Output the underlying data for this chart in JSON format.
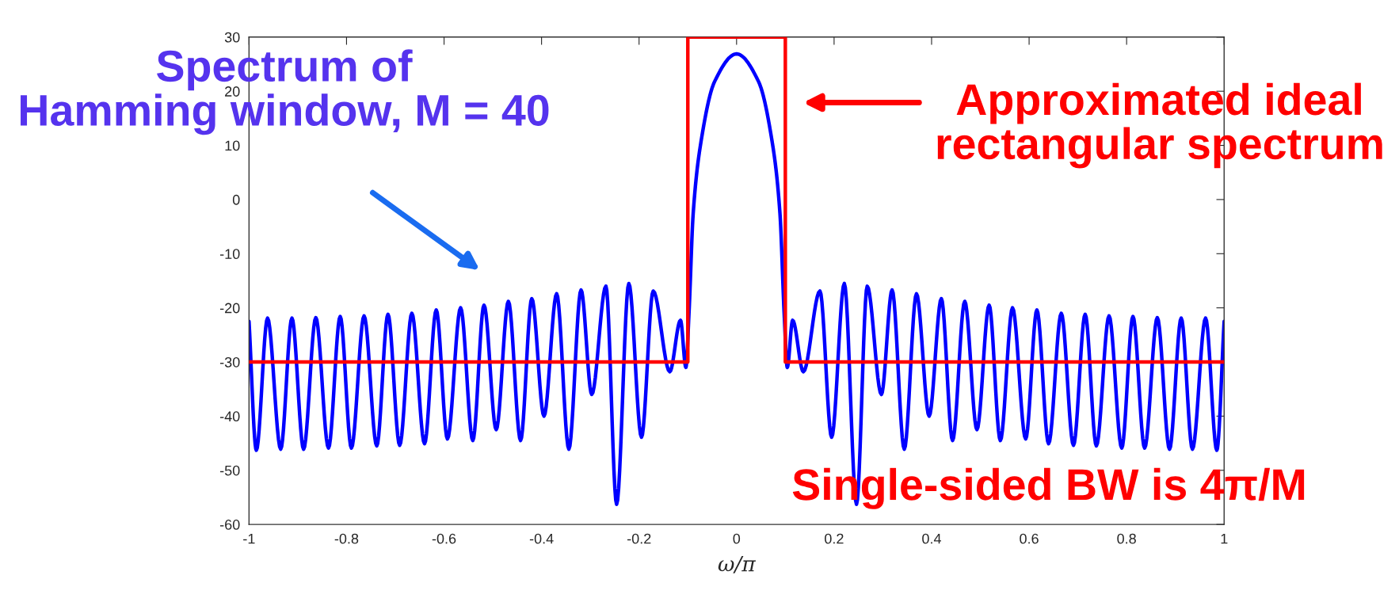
{
  "chart_data": {
    "type": "line",
    "xlabel": "ω/π",
    "xlim": [
      -1,
      1
    ],
    "ylim": [
      -60,
      30
    ],
    "xticks": [
      -1,
      -0.8,
      -0.6,
      -0.4,
      -0.2,
      0,
      0.2,
      0.4,
      0.6,
      0.8,
      1
    ],
    "yticks": [
      -60,
      -50,
      -40,
      -30,
      -20,
      -10,
      0,
      10,
      20,
      30
    ],
    "grid": false,
    "legend": false,
    "marker": "none",
    "line_style": "solid",
    "series": [
      {
        "color": "#0000ff",
        "x": [
          -1.0,
          -0.985,
          -0.962,
          -0.935,
          -0.912,
          -0.888,
          -0.863,
          -0.837,
          -0.813,
          -0.79,
          -0.764,
          -0.738,
          -0.715,
          -0.691,
          -0.666,
          -0.64,
          -0.616,
          -0.593,
          -0.566,
          -0.541,
          -0.518,
          -0.493,
          -0.468,
          -0.443,
          -0.42,
          -0.395,
          -0.369,
          -0.344,
          -0.319,
          -0.297,
          -0.268,
          -0.246,
          -0.221,
          -0.195,
          -0.171,
          -0.137,
          -0.115,
          -0.104,
          -0.0976,
          -0.089,
          -0.075,
          -0.045,
          0.0,
          0.045,
          0.075,
          0.089,
          0.0976,
          0.104,
          0.115,
          0.137,
          0.171,
          0.195,
          0.221,
          0.246,
          0.268,
          0.297,
          0.319,
          0.344,
          0.369,
          0.395,
          0.42,
          0.443,
          0.468,
          0.493,
          0.518,
          0.541,
          0.566,
          0.593,
          0.616,
          0.64,
          0.666,
          0.691,
          0.715,
          0.738,
          0.764,
          0.79,
          0.813,
          0.837,
          0.863,
          0.888,
          0.912,
          0.935,
          0.962,
          0.985,
          1.0
        ],
        "values": [
          -22.5,
          -46.3,
          -21.9,
          -46.1,
          -21.9,
          -46.1,
          -21.8,
          -45.9,
          -21.6,
          -45.9,
          -21.5,
          -45.5,
          -21.2,
          -45.4,
          -21.0,
          -45.1,
          -20.4,
          -44.2,
          -20.0,
          -44.5,
          -19.5,
          -42.5,
          -18.8,
          -44.5,
          -18.3,
          -40.0,
          -17.4,
          -46.1,
          -16.7,
          -36.0,
          -16.0,
          -56.3,
          -15.5,
          -43.9,
          -16.9,
          -31.8,
          -22.3,
          -31,
          -21,
          -2.6,
          9.5,
          21.8,
          26.9,
          21.8,
          9.5,
          -2.6,
          -21,
          -31,
          -22.3,
          -31.8,
          -16.9,
          -43.9,
          -15.5,
          -56.3,
          -16.0,
          -36.0,
          -16.7,
          -46.1,
          -17.4,
          -40.0,
          -18.3,
          -44.5,
          -18.8,
          -42.5,
          -19.5,
          -44.5,
          -20.0,
          -44.2,
          -20.4,
          -45.1,
          -21.0,
          -45.4,
          -21.2,
          -45.5,
          -21.5,
          -45.9,
          -21.6,
          -45.9,
          -21.8,
          -46.1,
          -21.9,
          -46.1,
          -21.9,
          -46.3,
          -22.5
        ]
      },
      {
        "color": "#ff0000",
        "x": [
          -1,
          -0.1,
          -0.1,
          0.1,
          0.1,
          1
        ],
        "values": [
          -30,
          -30,
          30,
          30,
          -30,
          -30
        ]
      }
    ],
    "annotations": [
      "Spectrum of\nHamming window, M = 40",
      "Approximated ideal\nrectangular spectrum",
      "Single-sided BW is 4π/M"
    ]
  }
}
